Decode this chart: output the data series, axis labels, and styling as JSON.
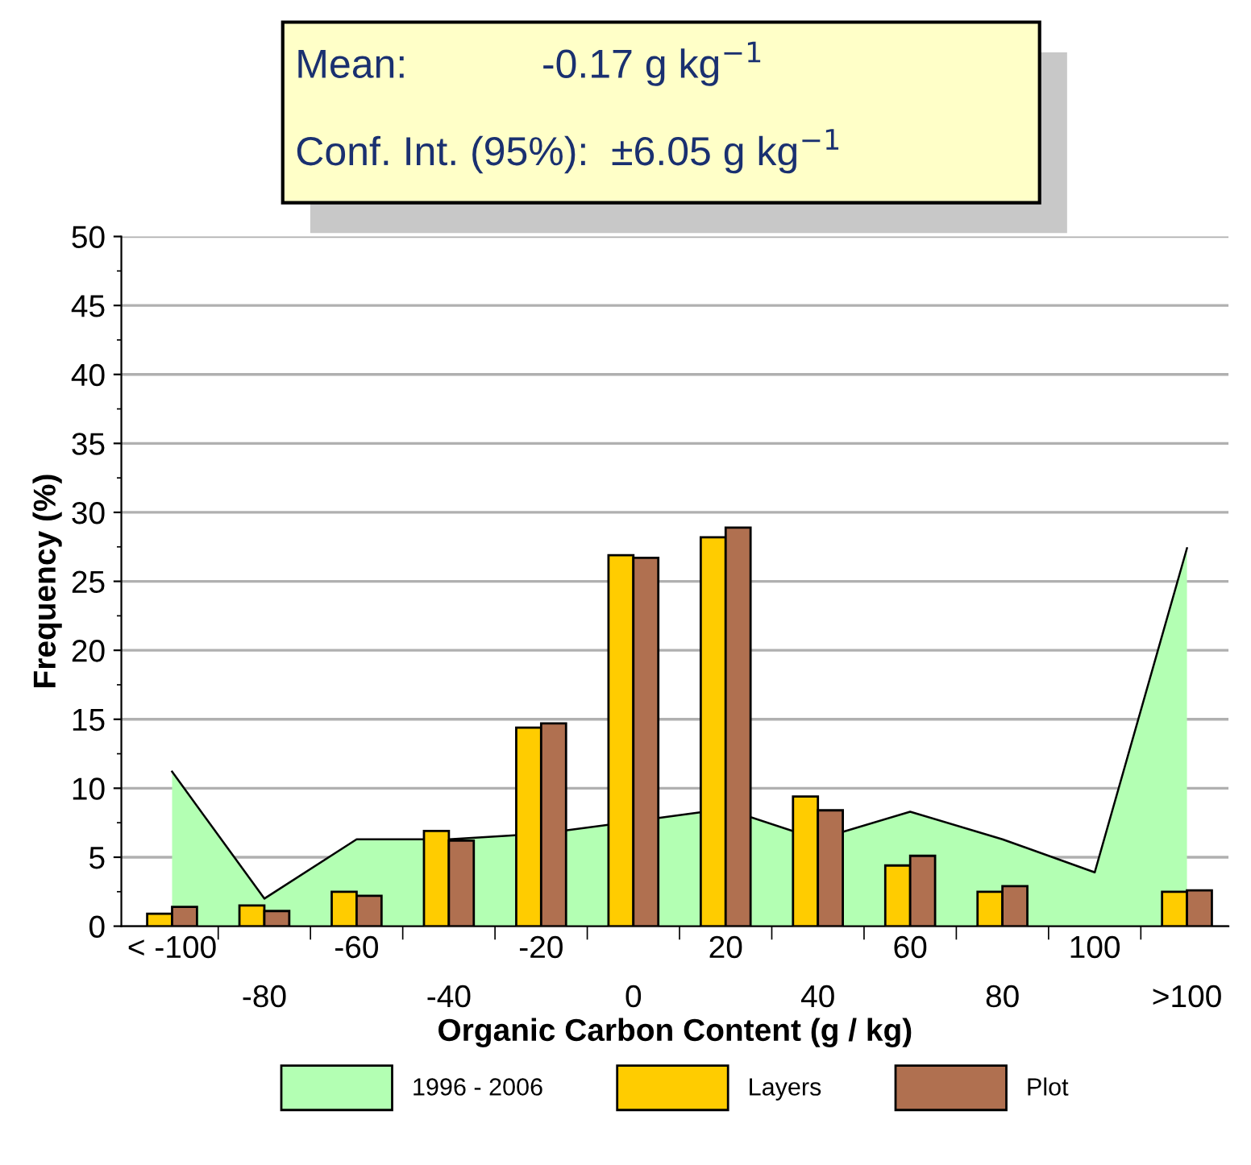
{
  "chart_data": {
    "type": "bar",
    "xlabel": "Organic Carbon Content (g / kg)",
    "ylabel": "Frequency (%)",
    "categories": [
      "< -100",
      "-80",
      "-60",
      "-40",
      "-20",
      "0",
      "20",
      "40",
      "60",
      "80",
      "100",
      ">100"
    ],
    "series": [
      {
        "name": "1996 - 2006",
        "type": "area",
        "color": "#b3ffb3",
        "values": [
          11.2,
          2.0,
          6.3,
          6.3,
          6.7,
          7.6,
          8.5,
          6.3,
          8.3,
          6.3,
          3.9,
          27.4
        ]
      },
      {
        "name": "Layers",
        "color": "#ffcc00",
        "values": [
          0.9,
          1.5,
          2.5,
          6.9,
          14.4,
          26.9,
          28.2,
          9.4,
          4.4,
          2.5,
          null,
          2.5
        ]
      },
      {
        "name": "Plot",
        "color": "#b07050",
        "values": [
          1.4,
          1.1,
          2.2,
          6.2,
          14.7,
          26.7,
          28.9,
          8.4,
          5.1,
          2.9,
          null,
          2.6
        ]
      }
    ],
    "ylim": [
      0,
      50
    ],
    "yticks": [
      0,
      5,
      10,
      15,
      20,
      25,
      30,
      35,
      40,
      45,
      50
    ],
    "grid": "y",
    "legend": "bottom",
    "annotations": [
      "Mean:            -0.17 g kg$^{−1}$",
      "Conf. Int. (95%):  ±6.05 g kg$^{−1}$"
    ]
  }
}
